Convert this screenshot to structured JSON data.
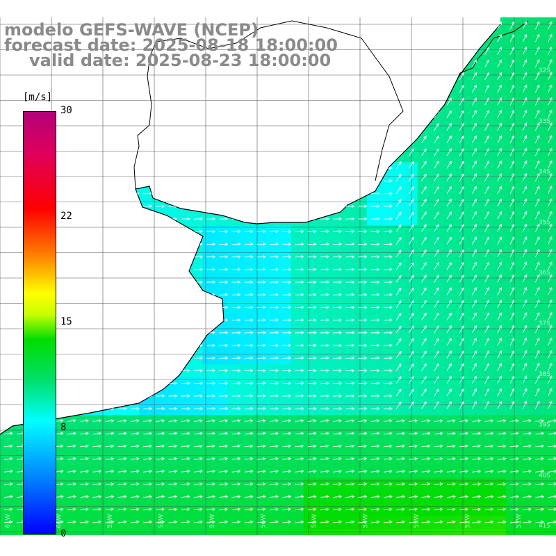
{
  "title": {
    "line1": "modelo GEFS-WAVE (NCEP)",
    "line2": "forecast date: 2025-08-18 18:00:00",
    "line3": "valid date: 2025-08-23 18:00:00"
  },
  "colorbar": {
    "unit": "[m/s]",
    "ticks": [
      "30",
      "22",
      "15",
      "8",
      "0"
    ],
    "min": 0,
    "max": 30,
    "stops": [
      "#0000ff",
      "#0080ff",
      "#00ffff",
      "#00dd00",
      "#ffff00",
      "#ff8000",
      "#ff0000",
      "#b4007a"
    ]
  },
  "lat_labels": [
    "32S",
    "33S",
    "34S",
    "35S",
    "36S",
    "37S",
    "38S",
    "39S",
    "40S",
    "41S"
  ],
  "lon_labels": [
    "61W",
    "60W",
    "59W",
    "58W",
    "57W",
    "56W",
    "55W",
    "54W",
    "53W",
    "52W",
    "51W"
  ],
  "colors": {
    "land": "#ffffff",
    "coast": "#000000",
    "grid": "#555555",
    "arrow": "#ffffff",
    "label": "#8a8a8a"
  }
}
